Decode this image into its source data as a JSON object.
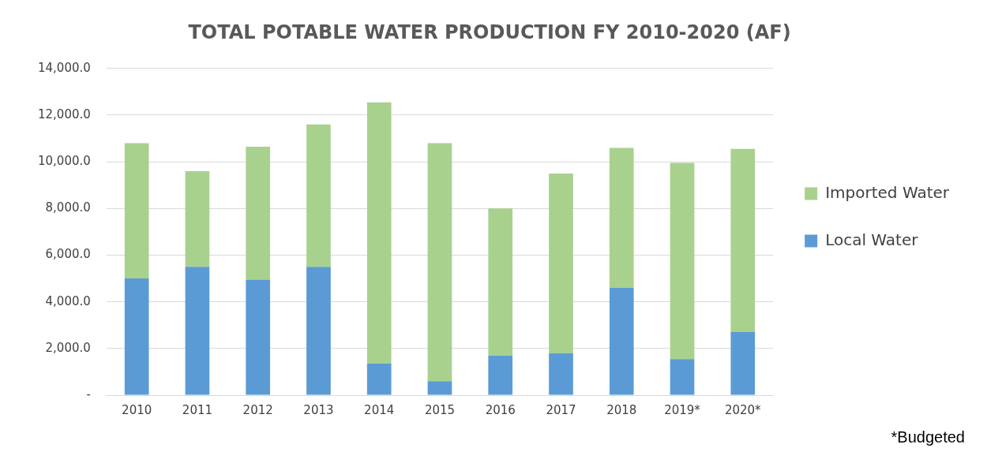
{
  "chart_data": {
    "type": "bar",
    "title": "TOTAL POTABLE WATER PRODUCTION FY 2010-2020 (AF)",
    "categories": [
      "2010",
      "2011",
      "2012",
      "2013",
      "2014",
      "2015",
      "2016",
      "2017",
      "2018",
      "2019*",
      "2020*"
    ],
    "series": [
      {
        "name": "Local Water",
        "color": "#5b9bd5",
        "values": [
          5000,
          5500,
          4950,
          5500,
          1350,
          600,
          1700,
          1800,
          4600,
          1550,
          2700
        ]
      },
      {
        "name": "Imported Water",
        "color": "#a9d18e",
        "values": [
          5800,
          4100,
          5700,
          6100,
          11200,
          10200,
          6300,
          7700,
          6000,
          8400,
          7850
        ]
      }
    ],
    "stacked": true,
    "ylim": [
      0,
      14000
    ],
    "yticks": [
      {
        "value": 0,
        "label": "-"
      },
      {
        "value": 2000,
        "label": "2,000.0"
      },
      {
        "value": 4000,
        "label": "4,000.0"
      },
      {
        "value": 6000,
        "label": "6,000.0"
      },
      {
        "value": 8000,
        "label": "8,000.0"
      },
      {
        "value": 10000,
        "label": "10,000.0"
      },
      {
        "value": 12000,
        "label": "12,000.0"
      },
      {
        "value": 14000,
        "label": "14,000.0"
      }
    ],
    "grid": "y",
    "legend": "right",
    "annotations": [
      "*Budgeted"
    ]
  }
}
